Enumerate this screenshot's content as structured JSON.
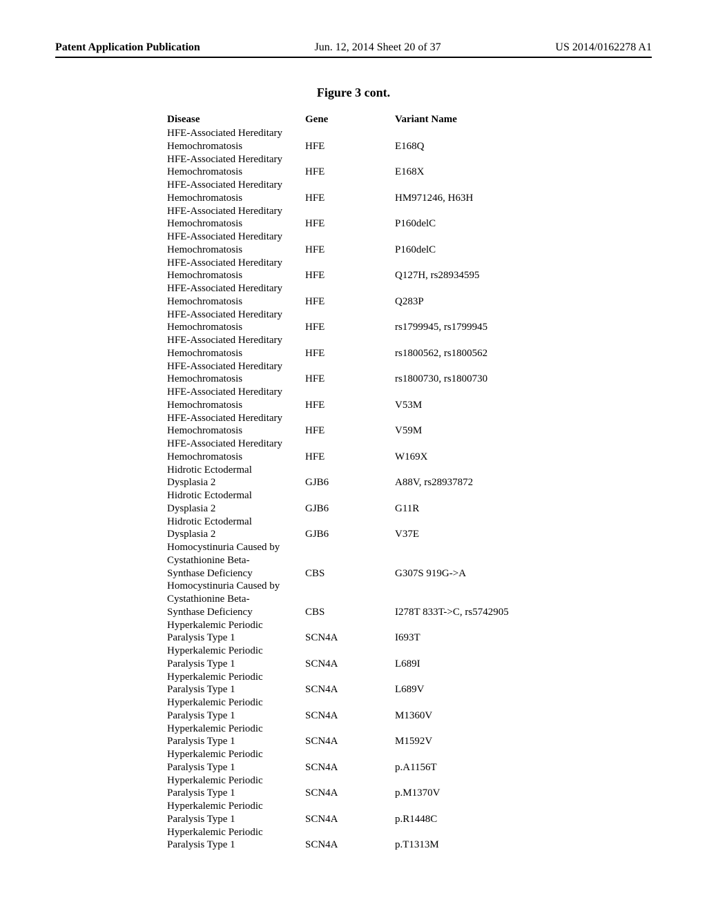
{
  "header": {
    "left": "Patent Application Publication",
    "center": "Jun. 12, 2014  Sheet 20 of 37",
    "right": "US 2014/0162278 A1"
  },
  "figure_title": "Figure 3 cont.",
  "columns": {
    "disease": "Disease",
    "gene": "Gene",
    "variant": "Variant Name"
  },
  "rows": [
    {
      "disease": [
        "HFE-Associated Hereditary",
        "Hemochromatosis"
      ],
      "gene": "HFE",
      "variant": "E168Q"
    },
    {
      "disease": [
        "HFE-Associated Hereditary",
        "Hemochromatosis"
      ],
      "gene": "HFE",
      "variant": "E168X"
    },
    {
      "disease": [
        "HFE-Associated Hereditary",
        "Hemochromatosis"
      ],
      "gene": "HFE",
      "variant": "HM971246, H63H"
    },
    {
      "disease": [
        "HFE-Associated Hereditary",
        "Hemochromatosis"
      ],
      "gene": "HFE",
      "variant": "P160delC"
    },
    {
      "disease": [
        "HFE-Associated Hereditary",
        "Hemochromatosis"
      ],
      "gene": "HFE",
      "variant": "P160delC"
    },
    {
      "disease": [
        "HFE-Associated Hereditary",
        "Hemochromatosis"
      ],
      "gene": "HFE",
      "variant": "Q127H, rs28934595"
    },
    {
      "disease": [
        "HFE-Associated Hereditary",
        "Hemochromatosis"
      ],
      "gene": "HFE",
      "variant": "Q283P"
    },
    {
      "disease": [
        "HFE-Associated Hereditary",
        "Hemochromatosis"
      ],
      "gene": "HFE",
      "variant": "rs1799945, rs1799945"
    },
    {
      "disease": [
        "HFE-Associated Hereditary",
        "Hemochromatosis"
      ],
      "gene": "HFE",
      "variant": "rs1800562, rs1800562"
    },
    {
      "disease": [
        "HFE-Associated Hereditary",
        "Hemochromatosis"
      ],
      "gene": "HFE",
      "variant": "rs1800730, rs1800730"
    },
    {
      "disease": [
        "HFE-Associated Hereditary",
        "Hemochromatosis"
      ],
      "gene": "HFE",
      "variant": "V53M"
    },
    {
      "disease": [
        "HFE-Associated Hereditary",
        "Hemochromatosis"
      ],
      "gene": "HFE",
      "variant": "V59M"
    },
    {
      "disease": [
        "HFE-Associated Hereditary",
        "Hemochromatosis"
      ],
      "gene": "HFE",
      "variant": "W169X"
    },
    {
      "disease": [
        "Hidrotic Ectodermal",
        "Dysplasia 2"
      ],
      "gene": "GJB6",
      "variant": "A88V, rs28937872"
    },
    {
      "disease": [
        "Hidrotic Ectodermal",
        "Dysplasia 2"
      ],
      "gene": "GJB6",
      "variant": "G11R"
    },
    {
      "disease": [
        "Hidrotic Ectodermal",
        "Dysplasia 2"
      ],
      "gene": "GJB6",
      "variant": "V37E"
    },
    {
      "disease": [
        "Homocystinuria Caused by",
        "Cystathionine Beta-",
        "Synthase Deficiency"
      ],
      "gene": "CBS",
      "variant": "G307S 919G->A"
    },
    {
      "disease": [
        "Homocystinuria Caused by",
        "Cystathionine Beta-",
        "Synthase Deficiency"
      ],
      "gene": "CBS",
      "variant": "I278T 833T->C, rs5742905"
    },
    {
      "disease": [
        "Hyperkalemic Periodic",
        "Paralysis Type 1"
      ],
      "gene": "SCN4A",
      "variant": "I693T"
    },
    {
      "disease": [
        "Hyperkalemic Periodic",
        "Paralysis Type 1"
      ],
      "gene": "SCN4A",
      "variant": "L689I"
    },
    {
      "disease": [
        "Hyperkalemic Periodic",
        "Paralysis Type 1"
      ],
      "gene": "SCN4A",
      "variant": "L689V"
    },
    {
      "disease": [
        "Hyperkalemic Periodic",
        "Paralysis Type 1"
      ],
      "gene": "SCN4A",
      "variant": "M1360V"
    },
    {
      "disease": [
        "Hyperkalemic Periodic",
        "Paralysis Type 1"
      ],
      "gene": "SCN4A",
      "variant": "M1592V"
    },
    {
      "disease": [
        "Hyperkalemic Periodic",
        "Paralysis Type 1"
      ],
      "gene": "SCN4A",
      "variant": "p.A1156T"
    },
    {
      "disease": [
        "Hyperkalemic Periodic",
        "Paralysis Type 1"
      ],
      "gene": "SCN4A",
      "variant": "p.M1370V"
    },
    {
      "disease": [
        "Hyperkalemic Periodic",
        "Paralysis Type 1"
      ],
      "gene": "SCN4A",
      "variant": "p.R1448C"
    },
    {
      "disease": [
        "Hyperkalemic Periodic",
        "Paralysis Type 1"
      ],
      "gene": "SCN4A",
      "variant": "p.T1313M"
    }
  ]
}
